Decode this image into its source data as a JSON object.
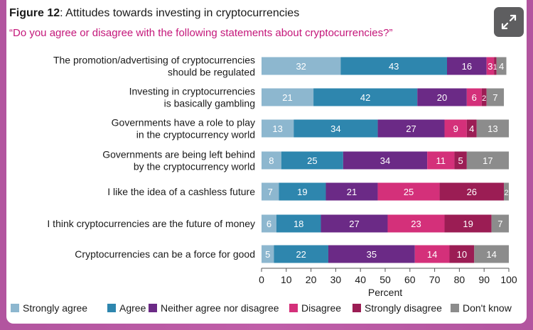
{
  "figure": {
    "label": "Figure 12",
    "title": ": Attitudes towards investing in cryptocurrencies",
    "subtitle": "“Do you agree or disagree with the following statements about cryptocurrencies?”"
  },
  "controls": {
    "expand_icon": "expand-arrows-icon"
  },
  "chart_data": {
    "type": "bar",
    "orientation": "horizontal",
    "stacked": true,
    "title": "",
    "xlabel": "Percent",
    "xlim": [
      0,
      100
    ],
    "xticks": [
      0,
      10,
      20,
      30,
      40,
      50,
      60,
      70,
      80,
      90,
      100
    ],
    "categories": [
      [
        "The promotion/advertising of cryptocurrencies",
        "should be regulated"
      ],
      [
        "Investing in cryptocurrencies",
        "is basically gambling"
      ],
      [
        "Governments have a role to play",
        "in the cryptocurrency world"
      ],
      [
        "Governments are being left behind",
        "by the cryptocurrency world"
      ],
      [
        "I like the idea of a cashless future"
      ],
      [
        "I think cryptocurrencies are the future of money"
      ],
      [
        "Cryptocurrencies can be a force for good"
      ]
    ],
    "series": [
      {
        "name": "Strongly agree",
        "color": "#8db7cf",
        "values": [
          32,
          21,
          13,
          8,
          7,
          6,
          5
        ]
      },
      {
        "name": "Agree",
        "color": "#2e86ae",
        "values": [
          43,
          42,
          34,
          25,
          19,
          18,
          22
        ]
      },
      {
        "name": "Neither agree nor disagree",
        "color": "#6b2a86",
        "values": [
          16,
          20,
          27,
          34,
          21,
          27,
          35
        ]
      },
      {
        "name": "Disagree",
        "color": "#d4307a",
        "values": [
          3,
          6,
          9,
          11,
          25,
          23,
          14
        ]
      },
      {
        "name": "Strongly disagree",
        "color": "#9b1d54",
        "values": [
          1,
          2,
          4,
          5,
          26,
          19,
          10
        ]
      },
      {
        "name": "Don't know",
        "color": "#8c8c8c",
        "values": [
          4,
          7,
          13,
          17,
          2,
          7,
          14
        ]
      }
    ],
    "grid": false,
    "legend_position": "bottom"
  }
}
